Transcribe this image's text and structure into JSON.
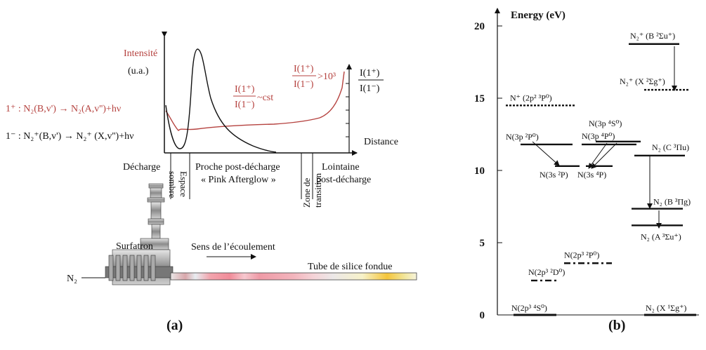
{
  "panel_a": {
    "label": "(a)",
    "y_axis_label_line1": "Intensité",
    "y_axis_label_line2": "(u.a.)",
    "right_axis_label_num": "I(1⁺)",
    "right_axis_label_den": "I(1⁻)",
    "x_axis_label": "Distance",
    "ratio_const_num": "I(1⁺)",
    "ratio_const_den": "I(1⁻)",
    "ratio_const_suffix": "~cst",
    "ratio_high_num": "I(1⁺)",
    "ratio_high_den": "I(1⁻)",
    "ratio_high_suffix": ">10³",
    "system_1plus": "1⁺ : N₂(B,v') → N₂(A,v'')+hν",
    "system_1minus": "1⁻ : N₂⁺(B,v') → N₂⁺ (X,v'')+hν",
    "zones": {
      "decharge": "Décharge",
      "espace_sombre_1": "Espace",
      "espace_sombre_2": "sombre",
      "proche_1": "Proche post-décharge",
      "proche_2": "« Pink Afterglow »",
      "zone_transition_1": "Zone de",
      "zone_transition_2": "transition",
      "lointaine_1": "Lointaine",
      "lointaine_2": "post-décharge"
    },
    "surfatron": "Surfatron",
    "flow_label": "Sens de l’écoulement",
    "tube_label": "Tube de silice fondue",
    "gas_label": "N₂"
  },
  "panel_b": {
    "label": "(b)",
    "axis_title": "Energy (eV)",
    "ticks": [
      {
        "value": 0,
        "label": "0"
      },
      {
        "value": 5,
        "label": "5"
      },
      {
        "value": 10,
        "label": "10"
      },
      {
        "value": 15,
        "label": "15"
      },
      {
        "value": 20,
        "label": "20"
      }
    ],
    "levels": [
      {
        "id": "n2p3-4s0",
        "energy": 0,
        "style": "solid",
        "col": "atomic-left",
        "label": "N(2p³ ⁴S⁰)"
      },
      {
        "id": "n2p3-2d0",
        "energy": 2.38,
        "style": "dashdot",
        "col": "atomic-left",
        "label": "N(2p³ ²D⁰)"
      },
      {
        "id": "n2p3-2p0",
        "energy": 3.58,
        "style": "dashdot",
        "col": "atomic-mid",
        "label": "N(2p³ ²P⁰)"
      },
      {
        "id": "n3s-2p",
        "energy": 10.3,
        "style": "solid",
        "col": "atomic-left",
        "label": "N(3s ²P)"
      },
      {
        "id": "n3p-2p0",
        "energy": 11.8,
        "style": "solid",
        "col": "atomic-left",
        "label": "N(3p ²P⁰)"
      },
      {
        "id": "n3s-4p",
        "energy": 10.3,
        "style": "solid",
        "col": "atomic-mid",
        "label": "N(3s ⁴P)"
      },
      {
        "id": "n3p-4p0",
        "energy": 11.8,
        "style": "solid",
        "col": "atomic-mid",
        "label": "N(3p ⁴P⁰)"
      },
      {
        "id": "n3p-4s0",
        "energy": 12.0,
        "style": "solid",
        "col": "atomic-mid",
        "label": "N(3p ⁴S⁰)"
      },
      {
        "id": "nplus-3p0",
        "energy": 14.5,
        "style": "dotted",
        "col": "atomic-left",
        "label": "N⁺ (2p² ³P⁰)"
      },
      {
        "id": "n2-x",
        "energy": 0,
        "style": "solid",
        "col": "molecular",
        "label": "N₂ (X ¹Σg⁺)"
      },
      {
        "id": "n2-a",
        "energy": 6.2,
        "style": "solid",
        "col": "molecular",
        "label": "N₂ (A ³Σu⁺)"
      },
      {
        "id": "n2-b",
        "energy": 7.35,
        "style": "solid",
        "col": "molecular",
        "label": "N₂ (B ³Πg)"
      },
      {
        "id": "n2-c",
        "energy": 11.03,
        "style": "solid",
        "col": "molecular",
        "label": "N₂ (C ³Πu)"
      },
      {
        "id": "n2plus-x",
        "energy": 15.58,
        "style": "dotted",
        "col": "molecular",
        "label": "N₂⁺ (X ²Σg⁺)"
      },
      {
        "id": "n2plus-b",
        "energy": 18.75,
        "style": "solid",
        "col": "molecular",
        "label": "N₂⁺ (B ²Σu⁺)"
      }
    ]
  },
  "colors": {
    "red": "#b5423f",
    "black": "#111111"
  }
}
